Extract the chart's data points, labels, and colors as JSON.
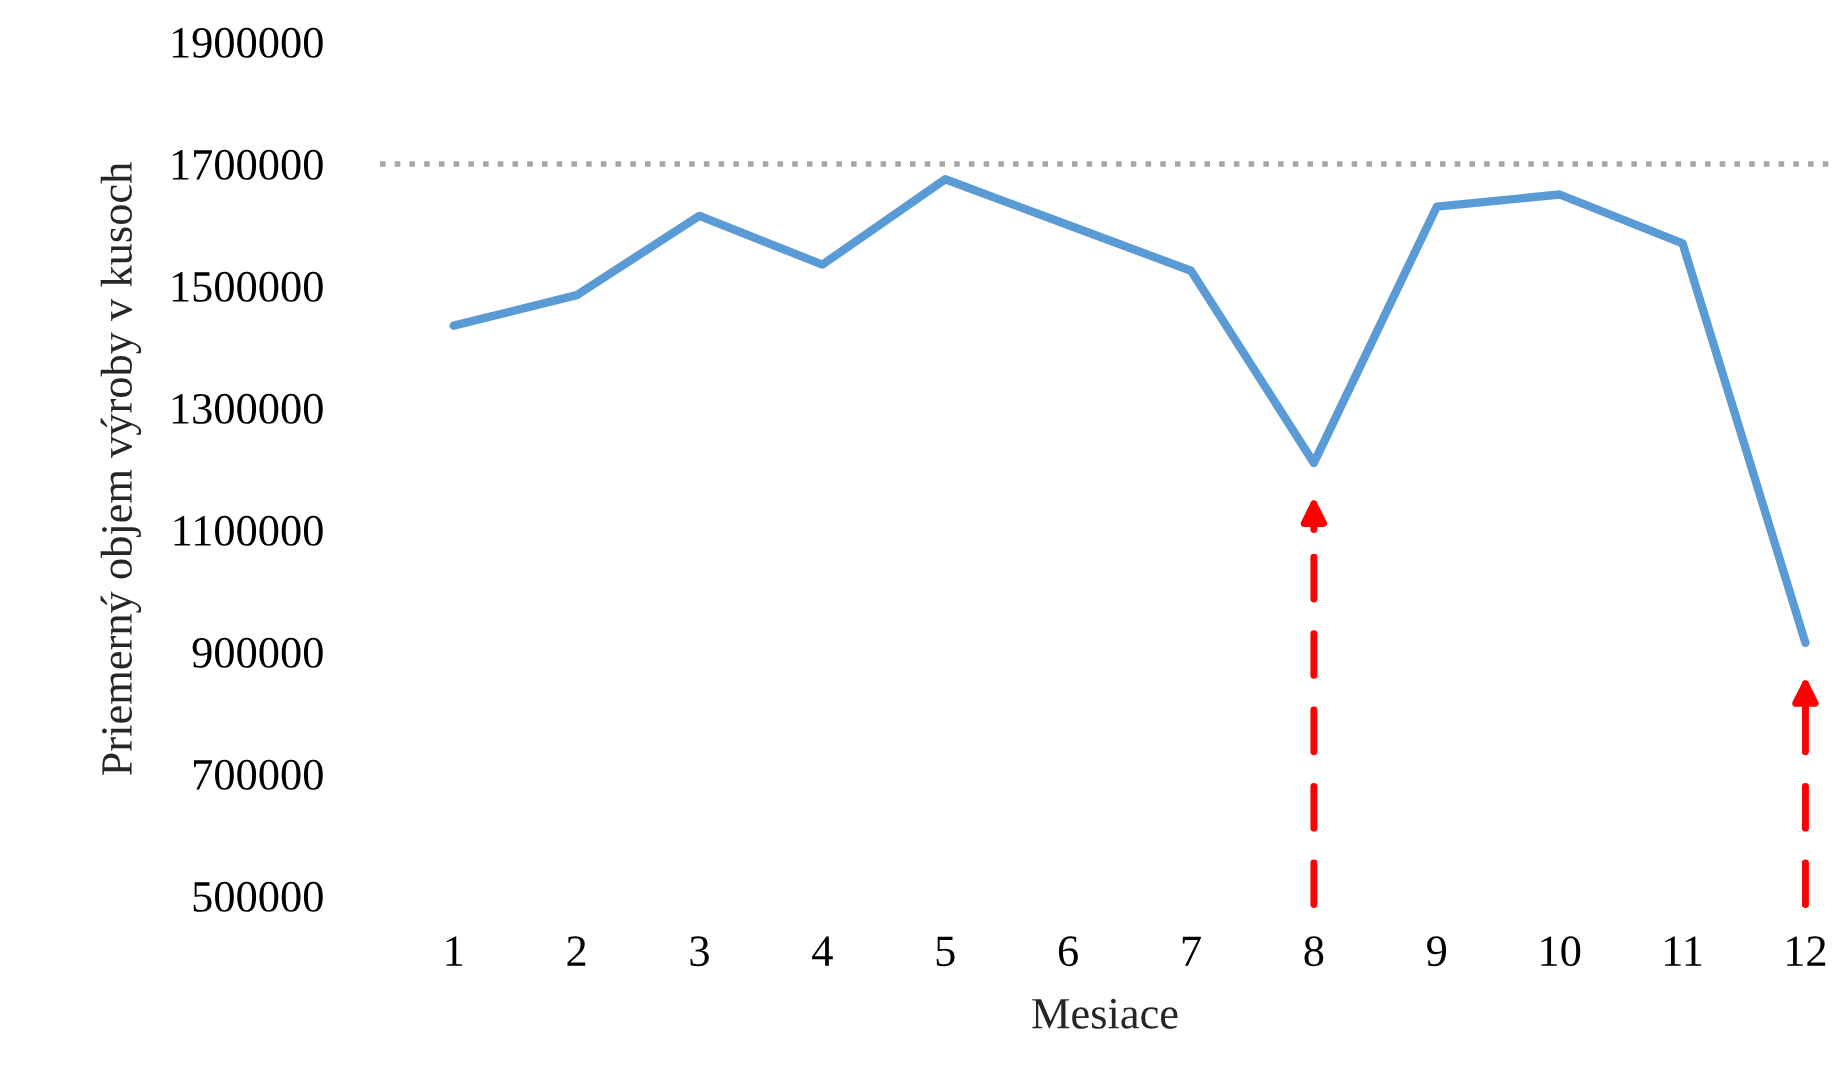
{
  "chart_data": {
    "type": "line",
    "xlabel": "Mesiace",
    "ylabel": "Priemerný objem výroby v kusoch",
    "categories": [
      "1",
      "2",
      "3",
      "4",
      "5",
      "6",
      "7",
      "8",
      "9",
      "10",
      "11",
      "12"
    ],
    "series": [
      {
        "color": "#5b9bd5",
        "values": [
          1435000,
          1485000,
          1615000,
          1535000,
          1675000,
          1600000,
          1525000,
          1210000,
          1630000,
          1650000,
          1570000,
          915000
        ]
      }
    ],
    "ylim": [
      500000,
      1900000
    ],
    "yticks": [
      500000,
      700000,
      900000,
      1100000,
      1300000,
      1500000,
      1700000,
      1900000
    ],
    "ref_lines": [
      {
        "axis": "y",
        "value": 1700000,
        "color": "#a6a6a6",
        "line_style": "dotted"
      }
    ],
    "grid": false,
    "legend": false,
    "marker": "none",
    "line_style": "solid"
  }
}
